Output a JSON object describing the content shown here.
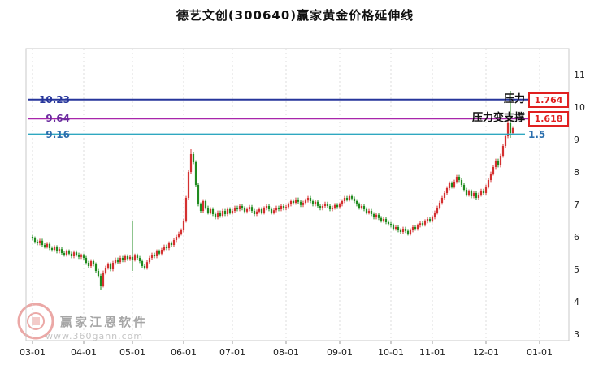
{
  "title": "德艺文创(300640)赢家黄金价格延伸线",
  "watermark": {
    "brand": "赢家江恩软件",
    "url": "www.360gann.com"
  },
  "chart_data": {
    "type": "candlestick",
    "title": "德艺文创(300640)赢家黄金价格延伸线",
    "x_axis": {
      "labels": [
        "03-01",
        "04-01",
        "05-01",
        "06-01",
        "07-01",
        "08-01",
        "09-01",
        "10-01",
        "11-01",
        "12-01",
        "01-01"
      ],
      "anchor_indices": [
        0,
        21,
        41,
        62,
        82,
        104,
        126,
        147,
        164,
        186,
        208
      ]
    },
    "y_axis": {
      "min": 3,
      "max": 11,
      "ticks": [
        3,
        4,
        5,
        6,
        7,
        8,
        9,
        10,
        11
      ]
    },
    "colors": {
      "up": "#d43030",
      "down": "#1f8b1f",
      "grid": "#dcdcdc",
      "border": "#c8c8c8",
      "axis_text": "#222222"
    },
    "wick_pad": 0.06,
    "candles_oc": [
      [
        6.0,
        5.95
      ],
      [
        5.95,
        5.85
      ],
      [
        5.85,
        5.8
      ],
      [
        5.8,
        5.88
      ],
      [
        5.88,
        5.75
      ],
      [
        5.75,
        5.7
      ],
      [
        5.7,
        5.78
      ],
      [
        5.78,
        5.65
      ],
      [
        5.65,
        5.6
      ],
      [
        5.6,
        5.68
      ],
      [
        5.68,
        5.55
      ],
      [
        5.55,
        5.62
      ],
      [
        5.62,
        5.5
      ],
      [
        5.5,
        5.45
      ],
      [
        5.45,
        5.55
      ],
      [
        5.55,
        5.48
      ],
      [
        5.48,
        5.4
      ],
      [
        5.4,
        5.52
      ],
      [
        5.52,
        5.45
      ],
      [
        5.45,
        5.38
      ],
      [
        5.38,
        5.42
      ],
      [
        5.42,
        5.35
      ],
      [
        5.35,
        5.2
      ],
      [
        5.2,
        5.1
      ],
      [
        5.1,
        5.25
      ],
      [
        5.25,
        5.15
      ],
      [
        5.15,
        4.95
      ],
      [
        4.95,
        4.8
      ],
      [
        4.8,
        4.5
      ],
      [
        4.5,
        4.9
      ],
      [
        4.9,
        5.05
      ],
      [
        5.05,
        5.15
      ],
      [
        5.15,
        5.0
      ],
      [
        5.0,
        5.2
      ],
      [
        5.2,
        5.3
      ],
      [
        5.3,
        5.22
      ],
      [
        5.22,
        5.35
      ],
      [
        5.35,
        5.28
      ],
      [
        5.28,
        5.4
      ],
      [
        5.4,
        5.32
      ],
      [
        5.32,
        5.38
      ],
      [
        5.38,
        5.3
      ],
      [
        5.3,
        5.42
      ],
      [
        5.42,
        5.35
      ],
      [
        5.35,
        5.25
      ],
      [
        5.25,
        5.1
      ],
      [
        5.1,
        5.05
      ],
      [
        5.05,
        5.22
      ],
      [
        5.22,
        5.35
      ],
      [
        5.35,
        5.45
      ],
      [
        5.45,
        5.4
      ],
      [
        5.4,
        5.55
      ],
      [
        5.55,
        5.48
      ],
      [
        5.48,
        5.6
      ],
      [
        5.6,
        5.7
      ],
      [
        5.7,
        5.65
      ],
      [
        5.65,
        5.8
      ],
      [
        5.8,
        5.75
      ],
      [
        5.75,
        5.9
      ],
      [
        5.9,
        6.0
      ],
      [
        6.0,
        6.1
      ],
      [
        6.1,
        6.2
      ],
      [
        6.2,
        6.5
      ],
      [
        6.5,
        7.2
      ],
      [
        7.2,
        8.0
      ],
      [
        8.0,
        8.55
      ],
      [
        8.55,
        8.3
      ],
      [
        8.3,
        7.6
      ],
      [
        7.6,
        7.0
      ],
      [
        7.0,
        6.8
      ],
      [
        6.8,
        7.1
      ],
      [
        7.1,
        6.9
      ],
      [
        6.9,
        6.75
      ],
      [
        6.75,
        6.85
      ],
      [
        6.85,
        6.7
      ],
      [
        6.7,
        6.6
      ],
      [
        6.6,
        6.75
      ],
      [
        6.75,
        6.65
      ],
      [
        6.65,
        6.8
      ],
      [
        6.8,
        6.7
      ],
      [
        6.7,
        6.85
      ],
      [
        6.85,
        6.75
      ],
      [
        6.75,
        6.8
      ],
      [
        6.8,
        6.9
      ],
      [
        6.9,
        6.85
      ],
      [
        6.85,
        6.95
      ],
      [
        6.95,
        6.88
      ],
      [
        6.88,
        6.78
      ],
      [
        6.78,
        6.85
      ],
      [
        6.85,
        6.92
      ],
      [
        6.92,
        6.8
      ],
      [
        6.8,
        6.7
      ],
      [
        6.7,
        6.78
      ],
      [
        6.78,
        6.85
      ],
      [
        6.85,
        6.75
      ],
      [
        6.75,
        6.88
      ],
      [
        6.88,
        6.95
      ],
      [
        6.95,
        6.85
      ],
      [
        6.85,
        6.75
      ],
      [
        6.75,
        6.82
      ],
      [
        6.82,
        6.9
      ],
      [
        6.9,
        6.85
      ],
      [
        6.85,
        6.95
      ],
      [
        6.95,
        6.88
      ],
      [
        6.88,
        6.92
      ],
      [
        6.92,
        7.0
      ],
      [
        7.0,
        7.1
      ],
      [
        7.1,
        7.05
      ],
      [
        7.05,
        7.15
      ],
      [
        7.15,
        7.08
      ],
      [
        7.08,
        6.98
      ],
      [
        6.98,
        7.05
      ],
      [
        7.05,
        7.12
      ],
      [
        7.12,
        7.2
      ],
      [
        7.2,
        7.1
      ],
      [
        7.1,
        7.0
      ],
      [
        7.0,
        7.08
      ],
      [
        7.08,
        6.95
      ],
      [
        6.95,
        6.88
      ],
      [
        6.88,
        6.95
      ],
      [
        6.95,
        7.02
      ],
      [
        7.02,
        6.95
      ],
      [
        6.95,
        6.85
      ],
      [
        6.85,
        6.9
      ],
      [
        6.9,
        6.98
      ],
      [
        6.98,
        6.92
      ],
      [
        6.92,
        7.0
      ],
      [
        7.0,
        7.1
      ],
      [
        7.1,
        7.2
      ],
      [
        7.2,
        7.15
      ],
      [
        7.15,
        7.25
      ],
      [
        7.25,
        7.18
      ],
      [
        7.18,
        7.1
      ],
      [
        7.1,
        7.0
      ],
      [
        7.0,
        6.9
      ],
      [
        6.9,
        6.95
      ],
      [
        6.95,
        6.85
      ],
      [
        6.85,
        6.75
      ],
      [
        6.75,
        6.8
      ],
      [
        6.8,
        6.7
      ],
      [
        6.7,
        6.6
      ],
      [
        6.6,
        6.68
      ],
      [
        6.68,
        6.58
      ],
      [
        6.58,
        6.5
      ],
      [
        6.5,
        6.55
      ],
      [
        6.55,
        6.45
      ],
      [
        6.45,
        6.4
      ],
      [
        6.4,
        6.35
      ],
      [
        6.35,
        6.25
      ],
      [
        6.25,
        6.3
      ],
      [
        6.3,
        6.2
      ],
      [
        6.2,
        6.15
      ],
      [
        6.15,
        6.25
      ],
      [
        6.25,
        6.18
      ],
      [
        6.18,
        6.1
      ],
      [
        6.1,
        6.2
      ],
      [
        6.2,
        6.3
      ],
      [
        6.3,
        6.25
      ],
      [
        6.25,
        6.35
      ],
      [
        6.35,
        6.42
      ],
      [
        6.42,
        6.38
      ],
      [
        6.38,
        6.48
      ],
      [
        6.48,
        6.55
      ],
      [
        6.55,
        6.5
      ],
      [
        6.5,
        6.6
      ],
      [
        6.6,
        6.75
      ],
      [
        6.75,
        6.9
      ],
      [
        6.9,
        7.05
      ],
      [
        7.05,
        7.2
      ],
      [
        7.2,
        7.35
      ],
      [
        7.35,
        7.5
      ],
      [
        7.5,
        7.65
      ],
      [
        7.65,
        7.55
      ],
      [
        7.55,
        7.7
      ],
      [
        7.7,
        7.85
      ],
      [
        7.85,
        7.75
      ],
      [
        7.75,
        7.6
      ],
      [
        7.6,
        7.45
      ],
      [
        7.45,
        7.3
      ],
      [
        7.3,
        7.4
      ],
      [
        7.4,
        7.25
      ],
      [
        7.25,
        7.35
      ],
      [
        7.35,
        7.2
      ],
      [
        7.2,
        7.3
      ],
      [
        7.3,
        7.42
      ],
      [
        7.42,
        7.35
      ],
      [
        7.35,
        7.55
      ],
      [
        7.55,
        7.75
      ],
      [
        7.75,
        7.95
      ],
      [
        7.95,
        8.15
      ],
      [
        8.15,
        8.35
      ],
      [
        8.35,
        8.2
      ],
      [
        8.2,
        8.5
      ],
      [
        8.5,
        8.8
      ],
      [
        8.8,
        9.1
      ],
      [
        9.1,
        9.5
      ],
      [
        9.5,
        9.2
      ],
      [
        9.2,
        9.35
      ]
    ],
    "wick_overrides": {
      "28": {
        "low": 4.35
      },
      "41": {
        "low": 4.95,
        "high": 6.5
      },
      "65": {
        "high": 8.7
      },
      "195": {
        "high": 9.65
      },
      "196": {
        "high": 10.5,
        "low": 9.05
      }
    },
    "levels": [
      {
        "value": 10.23,
        "label": "10.23",
        "line_color": "#26359b",
        "label_color": "#26359b",
        "annotation": "压力",
        "value_box": "1.764"
      },
      {
        "value": 9.64,
        "label": "9.64",
        "line_color": "#a826ab",
        "label_color": "#6a2a9e",
        "annotation": "压力变支撑",
        "value_box": "1.618"
      },
      {
        "value": 9.16,
        "label": "9.16",
        "line_color": "#2fa8c0",
        "label_color": "#2b6fae",
        "value_text": "1.5"
      }
    ],
    "box_color": "#e02020"
  }
}
